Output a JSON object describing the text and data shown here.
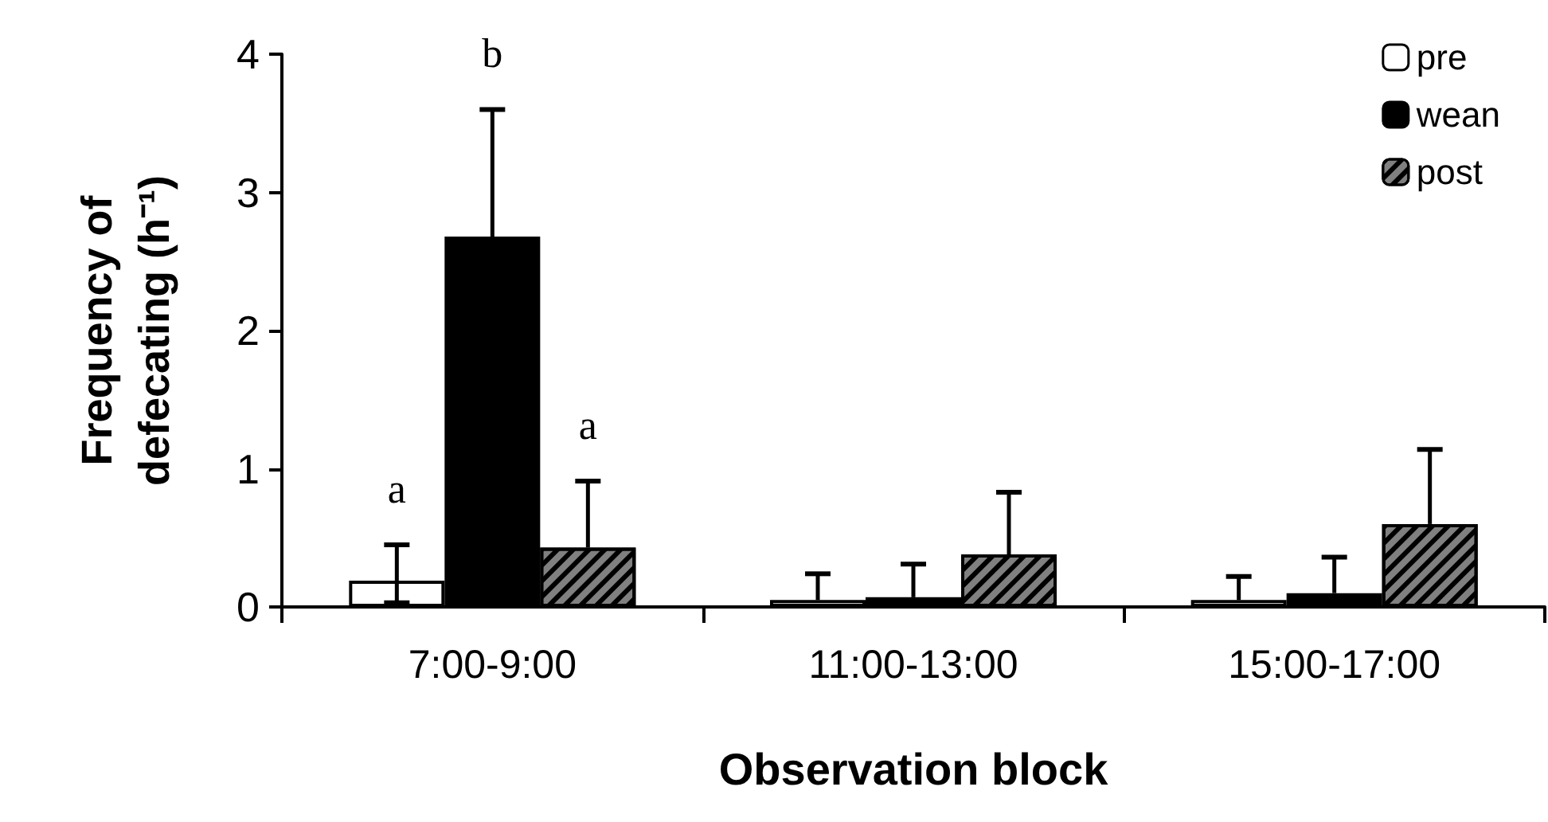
{
  "chart_data": {
    "type": "bar",
    "xlabel": "Observation block",
    "ylabel": "Frequency of defecating (h⁻¹)",
    "categories": [
      "7:00-9:00",
      "11:00-13:00",
      "15:00-17:00"
    ],
    "series": [
      {
        "name": "pre",
        "color": "#ffffff",
        "values": [
          0.19,
          0.05,
          0.05
        ],
        "errors": [
          [
            0.03,
            0.45
          ],
          [
            0.05,
            0.24
          ],
          [
            0.05,
            0.22
          ]
        ]
      },
      {
        "name": "wean",
        "color": "#000000",
        "values": [
          2.68,
          0.07,
          0.1
        ],
        "errors": [
          [
            2.68,
            3.6
          ],
          [
            0.07,
            0.31
          ],
          [
            0.1,
            0.36
          ]
        ]
      },
      {
        "name": "post",
        "color": "#808080",
        "values": [
          0.43,
          0.38,
          0.6
        ],
        "errors": [
          [
            0.43,
            0.91
          ],
          [
            0.38,
            0.83
          ],
          [
            0.6,
            1.14
          ]
        ]
      }
    ],
    "annotations": [
      "a",
      "b",
      "a"
    ],
    "ylim": [
      0,
      4
    ],
    "yticks": [
      0,
      1,
      2,
      3,
      4
    ],
    "grid": false,
    "legend": "top right"
  }
}
